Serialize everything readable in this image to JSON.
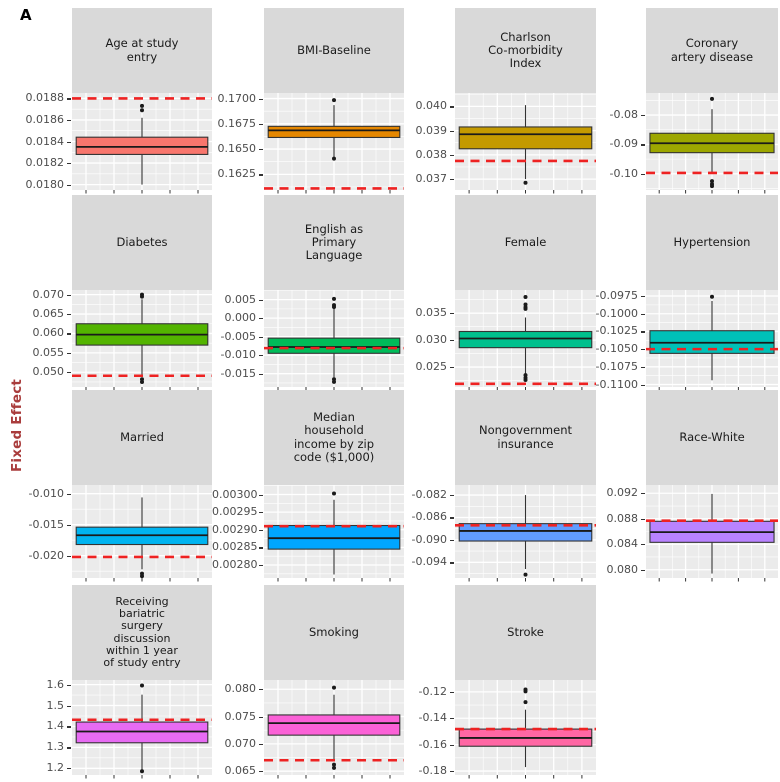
{
  "panel_label": "A",
  "y_axis_title": "Fixed Effect",
  "colors": {
    "dashed_line": "#EE2222",
    "y_axis_title": "#A93C3C",
    "strip_bg": "#D9D9D9",
    "panel_bg": "#EBEBEB",
    "grid": "#FFFFFF",
    "axis_text": "#4D4D4D",
    "box_stroke": "#333333",
    "outlier": "#1A1A1A"
  },
  "chart_data": {
    "type": "boxplot-facets",
    "title": "A",
    "ylabel": "Fixed Effect",
    "xlabel": "",
    "legend": "none",
    "grid": true,
    "facets": [
      {
        "label": "Age at study entry",
        "label_lines": [
          "Age at study",
          "entry"
        ],
        "color": "#F8766D",
        "ylim": [
          0.01795,
          0.01885
        ],
        "ticks": [
          {
            "v": 0.0188,
            "label": "0.0188"
          },
          {
            "v": 0.0186,
            "label": "0.0186"
          },
          {
            "v": 0.0184,
            "label": "0.0184"
          },
          {
            "v": 0.0182,
            "label": "0.0182"
          },
          {
            "v": 0.018,
            "label": "0.0180"
          }
        ],
        "box": {
          "lo": 0.018,
          "q1": 0.01828,
          "median": 0.01835,
          "q3": 0.01844,
          "hi": 0.01862
        },
        "outliers": [
          0.01869,
          0.01873
        ],
        "dashed": 0.0188
      },
      {
        "label": "BMI-Baseline",
        "label_lines": [
          "BMI-Baseline"
        ],
        "color": "#E58700",
        "ylim": [
          0.16095,
          0.17055
        ],
        "ticks": [
          {
            "v": 0.17,
            "label": "0.1700"
          },
          {
            "v": 0.1675,
            "label": "0.1675"
          },
          {
            "v": 0.165,
            "label": "0.1650"
          },
          {
            "v": 0.1625,
            "label": "0.1625"
          }
        ],
        "box": {
          "lo": 0.16415,
          "q1": 0.16615,
          "median": 0.16685,
          "q3": 0.16725,
          "hi": 0.16935
        },
        "outliers": [
          0.16985,
          0.16405
        ],
        "dashed": 0.1611
      },
      {
        "label": "Charlson Co-morbidity Index",
        "label_lines": [
          "Charlson",
          "Co-morbidity",
          "Index"
        ],
        "color": "#C49A00",
        "ylim": [
          0.03655,
          0.04055
        ],
        "ticks": [
          {
            "v": 0.04,
            "label": "0.040"
          },
          {
            "v": 0.039,
            "label": "0.039"
          },
          {
            "v": 0.038,
            "label": "0.038"
          },
          {
            "v": 0.037,
            "label": "0.037"
          }
        ],
        "box": {
          "lo": 0.037,
          "q1": 0.03825,
          "median": 0.03885,
          "q3": 0.03915,
          "hi": 0.04005
        },
        "outliers": [
          0.03685
        ],
        "dashed": 0.03775
      },
      {
        "label": "Coronary artery disease",
        "label_lines": [
          "Coronary",
          "artery disease"
        ],
        "color": "#9DA700",
        "ylim": [
          -0.1055,
          -0.0725
        ],
        "ticks": [
          {
            "v": -0.08,
            "label": "-0.08"
          },
          {
            "v": -0.09,
            "label": "-0.09"
          },
          {
            "v": -0.1,
            "label": "-0.10"
          }
        ],
        "box": {
          "lo": -0.1,
          "q1": -0.0928,
          "median": -0.0896,
          "q3": -0.0862,
          "hi": -0.078
        },
        "outliers": [
          -0.0745,
          -0.1025,
          -0.1035,
          -0.1042
        ],
        "dashed": -0.0997
      },
      {
        "label": "Diabetes",
        "label_lines": [
          "Diabetes"
        ],
        "color": "#53B400",
        "ylim": [
          0.0462,
          0.0712
        ],
        "ticks": [
          {
            "v": 0.07,
            "label": "0.070"
          },
          {
            "v": 0.065,
            "label": "0.065"
          },
          {
            "v": 0.06,
            "label": "0.060"
          },
          {
            "v": 0.055,
            "label": "0.055"
          },
          {
            "v": 0.05,
            "label": "0.050"
          }
        ],
        "box": {
          "lo": 0.0493,
          "q1": 0.057,
          "median": 0.0597,
          "q3": 0.0625,
          "hi": 0.0688
        },
        "outliers": [
          0.07,
          0.0695,
          0.0482,
          0.0475
        ],
        "dashed": 0.0491
      },
      {
        "label": "English as Primary Language",
        "label_lines": [
          "English as",
          "Primary",
          "Language"
        ],
        "color": "#00BC59",
        "ylim": [
          -0.0186,
          0.0076
        ],
        "ticks": [
          {
            "v": 0.005,
            "label": "0.005"
          },
          {
            "v": 0.0,
            "label": "0.000"
          },
          {
            "v": -0.005,
            "label": "-0.005"
          },
          {
            "v": -0.01,
            "label": "-0.010"
          },
          {
            "v": -0.015,
            "label": "-0.015"
          }
        ],
        "box": {
          "lo": -0.016,
          "q1": -0.0095,
          "median": -0.0078,
          "q3": -0.0054,
          "hi": 0.0028
        },
        "outliers": [
          0.0052,
          0.0035,
          0.003,
          -0.0165,
          -0.0172
        ],
        "dashed": -0.0081
      },
      {
        "label": "Female",
        "label_lines": [
          "Female"
        ],
        "color": "#00C08D",
        "ylim": [
          0.0213,
          0.0393
        ],
        "ticks": [
          {
            "v": 0.035,
            "label": "0.035"
          },
          {
            "v": 0.03,
            "label": "0.030"
          },
          {
            "v": 0.025,
            "label": "0.025"
          }
        ],
        "box": {
          "lo": 0.0238,
          "q1": 0.0286,
          "median": 0.0303,
          "q3": 0.0316,
          "hi": 0.0342
        },
        "outliers": [
          0.038,
          0.0366,
          0.0361,
          0.0358,
          0.0235,
          0.023,
          0.0226
        ],
        "dashed": 0.0219
      },
      {
        "label": "Hypertension",
        "label_lines": [
          "Hypertension"
        ],
        "color": "#00C1B8",
        "ylim": [
          -0.11035,
          -0.09665
        ],
        "ticks": [
          {
            "v": -0.0975,
            "label": "-0.0975"
          },
          {
            "v": -0.1,
            "label": "-0.1000"
          },
          {
            "v": -0.1025,
            "label": "-0.1025"
          },
          {
            "v": -0.105,
            "label": "-0.1050"
          },
          {
            "v": -0.1075,
            "label": "-0.1075"
          },
          {
            "v": -0.11,
            "label": "-0.1100"
          }
        ],
        "box": {
          "lo": -0.1094,
          "q1": -0.1056,
          "median": -0.1041,
          "q3": -0.1024,
          "hi": -0.0982
        },
        "outliers": [
          -0.0976
        ],
        "dashed": -0.105
      },
      {
        "label": "Married",
        "label_lines": [
          "Married"
        ],
        "color": "#00B4F0",
        "ylim": [
          -0.0236,
          -0.0086
        ],
        "ticks": [
          {
            "v": -0.01,
            "label": "-0.010"
          },
          {
            "v": -0.015,
            "label": "-0.015"
          },
          {
            "v": -0.02,
            "label": "-0.020"
          }
        ],
        "box": {
          "lo": -0.0222,
          "q1": -0.0182,
          "median": -0.0167,
          "q3": -0.0154,
          "hi": -0.0106
        },
        "outliers": [
          -0.0229,
          -0.0233
        ],
        "dashed": -0.0202
      },
      {
        "label": "Median household income by zip code ($1,000)",
        "label_lines": [
          "Median",
          "household",
          "income by zip",
          "code ($1,000)"
        ],
        "color": "#00A6FF",
        "ylim": [
          0.002763,
          0.003027
        ],
        "ticks": [
          {
            "v": 0.003,
            "label": "0.00300"
          },
          {
            "v": 0.00295,
            "label": "0.00295"
          },
          {
            "v": 0.0029,
            "label": "0.00290"
          },
          {
            "v": 0.00285,
            "label": "0.00285"
          },
          {
            "v": 0.0028,
            "label": "0.00280"
          }
        ],
        "box": {
          "lo": 0.002773,
          "q1": 0.002845,
          "median": 0.002876,
          "q3": 0.002912,
          "hi": 0.002985
        },
        "outliers": [
          0.003003
        ],
        "dashed": 0.00291
      },
      {
        "label": "Nongovernment insurance",
        "label_lines": [
          "Nongovernment",
          "insurance"
        ],
        "color": "#619CFF",
        "ylim": [
          -0.0968,
          -0.0802
        ],
        "ticks": [
          {
            "v": -0.082,
            "label": "-0.082"
          },
          {
            "v": -0.086,
            "label": "-0.086"
          },
          {
            "v": -0.09,
            "label": "-0.090"
          },
          {
            "v": -0.094,
            "label": "-0.094"
          }
        ],
        "box": {
          "lo": -0.0952,
          "q1": -0.0902,
          "median": -0.0884,
          "q3": -0.0871,
          "hi": -0.082
        },
        "outliers": [
          -0.0962
        ],
        "dashed": -0.0874
      },
      {
        "label": "Race-White",
        "label_lines": [
          "Race-White"
        ],
        "color": "#B983FF",
        "ylim": [
          0.0787,
          0.0933
        ],
        "ticks": [
          {
            "v": 0.092,
            "label": "0.092"
          },
          {
            "v": 0.088,
            "label": "0.088"
          },
          {
            "v": 0.084,
            "label": "0.084"
          },
          {
            "v": 0.08,
            "label": "0.080"
          }
        ],
        "box": {
          "lo": 0.0794,
          "q1": 0.0843,
          "median": 0.0859,
          "q3": 0.0876,
          "hi": 0.0919
        },
        "outliers": [],
        "dashed": 0.0877
      },
      {
        "label": "Receiving bariatric surgery discussion within 1 year of study entry",
        "label_lines": [
          "Receiving",
          "bariatric",
          "surgery",
          "discussion",
          "within 1 year",
          "of study entry"
        ],
        "color": "#E76BF3",
        "ylim": [
          1.168,
          1.622
        ],
        "ticks": [
          {
            "v": 1.6,
            "label": "1.6"
          },
          {
            "v": 1.5,
            "label": "1.5"
          },
          {
            "v": 1.4,
            "label": "1.4"
          },
          {
            "v": 1.3,
            "label": "1.3"
          },
          {
            "v": 1.2,
            "label": "1.2"
          }
        ],
        "box": {
          "lo": 1.193,
          "q1": 1.322,
          "median": 1.376,
          "q3": 1.421,
          "hi": 1.552
        },
        "outliers": [
          1.596,
          1.186
        ],
        "dashed": 1.432
      },
      {
        "label": "Smoking",
        "label_lines": [
          "Smoking"
        ],
        "color": "#FB61D7",
        "ylim": [
          0.0643,
          0.0817
        ],
        "ticks": [
          {
            "v": 0.08,
            "label": "0.080"
          },
          {
            "v": 0.075,
            "label": "0.075"
          },
          {
            "v": 0.07,
            "label": "0.070"
          },
          {
            "v": 0.065,
            "label": "0.065"
          }
        ],
        "box": {
          "lo": 0.0671,
          "q1": 0.0716,
          "median": 0.0738,
          "q3": 0.0753,
          "hi": 0.079
        },
        "outliers": [
          0.0803,
          0.0662,
          0.0656
        ],
        "dashed": 0.067
      },
      {
        "label": "Stroke",
        "label_lines": [
          "Stroke"
        ],
        "color": "#FF67A4",
        "ylim": [
          -0.183,
          -0.111
        ],
        "ticks": [
          {
            "v": -0.12,
            "label": "-0.12"
          },
          {
            "v": -0.14,
            "label": "-0.14"
          },
          {
            "v": -0.16,
            "label": "-0.16"
          },
          {
            "v": -0.18,
            "label": "-0.18"
          }
        ],
        "box": {
          "lo": -0.177,
          "q1": -0.1612,
          "median": -0.1549,
          "q3": -0.1482,
          "hi": -0.1335
        },
        "outliers": [
          -0.1182,
          -0.1196,
          -0.1278
        ],
        "dashed": -0.1482
      }
    ]
  }
}
